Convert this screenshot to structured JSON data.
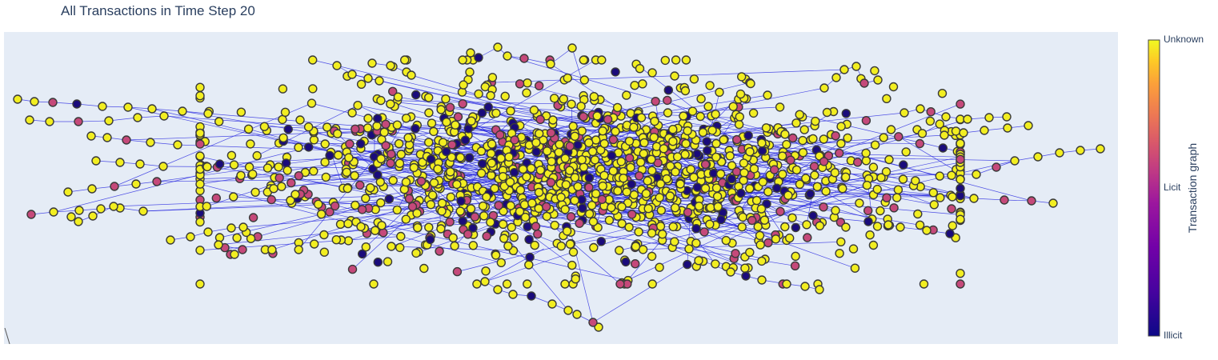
{
  "chart_data": {
    "type": "scatter",
    "title": "All Transactions in Time Step 20",
    "xlabel": "",
    "ylabel": "",
    "legend": "none",
    "grid": false,
    "colorbar": {
      "title": "Transaction graph",
      "ticks": [
        {
          "label": "Unknown",
          "value": 1.0
        },
        {
          "label": "Licit",
          "value": 0.5
        },
        {
          "label": "Illicit",
          "value": 0.0
        }
      ]
    },
    "node_classes": [
      {
        "label": "Unknown",
        "color": "#f2ee21"
      },
      {
        "label": "Licit",
        "color": "#c5497a"
      },
      {
        "label": "Illicit",
        "color": "#1a0b7b"
      }
    ],
    "edge_color": "#2626e0",
    "marker_outline": "#3a3a3a",
    "plot_background": "#e5ecf6"
  }
}
